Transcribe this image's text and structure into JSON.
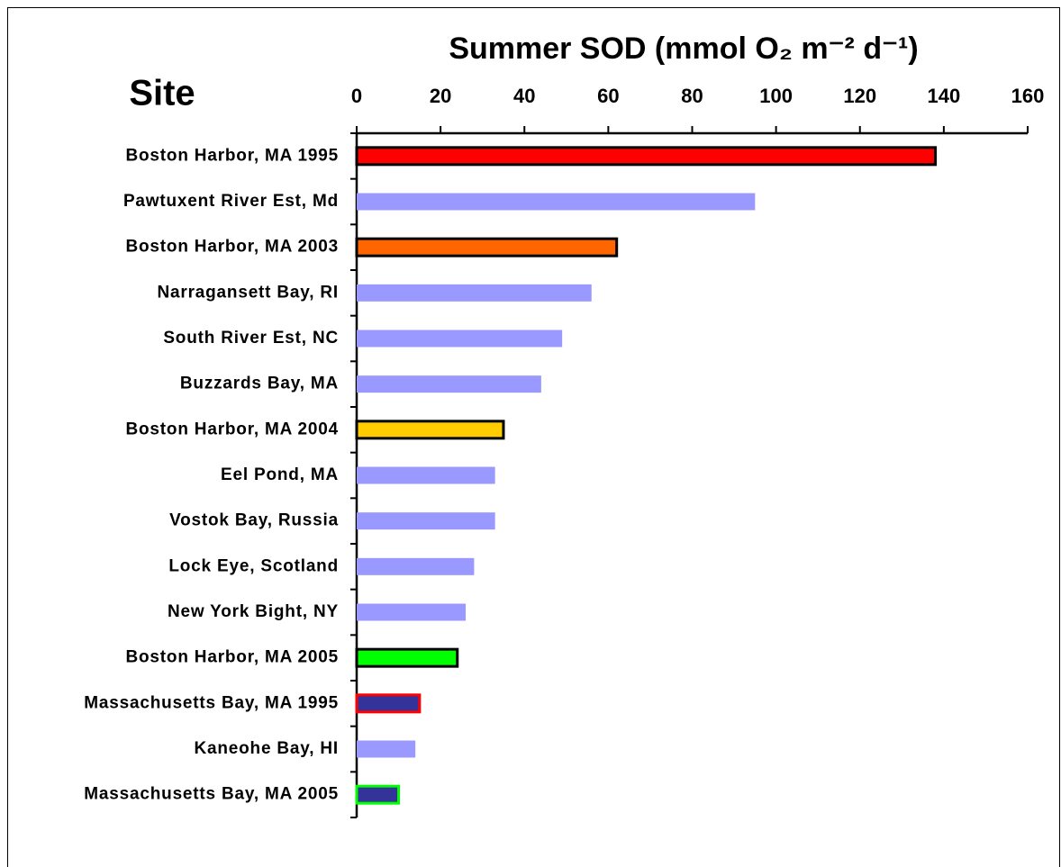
{
  "chart_data": {
    "type": "barh",
    "title": "Summer SOD (mmol O₂ m⁻² d⁻¹)",
    "y_label": "Site",
    "categories": [
      "Boston Harbor, MA 1995",
      "Pawtuxent River Est, Md",
      "Boston Harbor, MA 2003",
      "Narragansett Bay, RI",
      "South River Est, NC",
      "Buzzards Bay, MA",
      "Boston Harbor, MA 2004",
      "Eel Pond, MA",
      "Vostok Bay, Russia",
      "Lock Eye, Scotland",
      "New York Bight, NY",
      "Boston Harbor, MA 2005",
      "Massachusetts Bay, MA 1995",
      "Kaneohe Bay, HI",
      "Massachusetts Bay, MA 2005"
    ],
    "values": [
      138,
      95,
      62,
      56,
      49,
      44,
      35,
      33,
      33,
      28,
      26,
      24,
      15,
      14,
      10
    ],
    "colors": [
      "#ff0000",
      "#9999ff",
      "#ff6600",
      "#9999ff",
      "#9999ff",
      "#9999ff",
      "#ffcc00",
      "#9999ff",
      "#9999ff",
      "#9999ff",
      "#9999ff",
      "#00ff00",
      "#333399",
      "#9999ff",
      "#333399"
    ],
    "edgecolors": [
      "#000000",
      null,
      "#000000",
      null,
      null,
      null,
      "#000000",
      null,
      null,
      null,
      null,
      "#000000",
      "#ff0000",
      null,
      "#00ff00"
    ],
    "xlim": [
      0,
      160
    ],
    "xticks": [
      0,
      20,
      40,
      60,
      80,
      100,
      120,
      140,
      160
    ],
    "xaxis_position": "top"
  }
}
